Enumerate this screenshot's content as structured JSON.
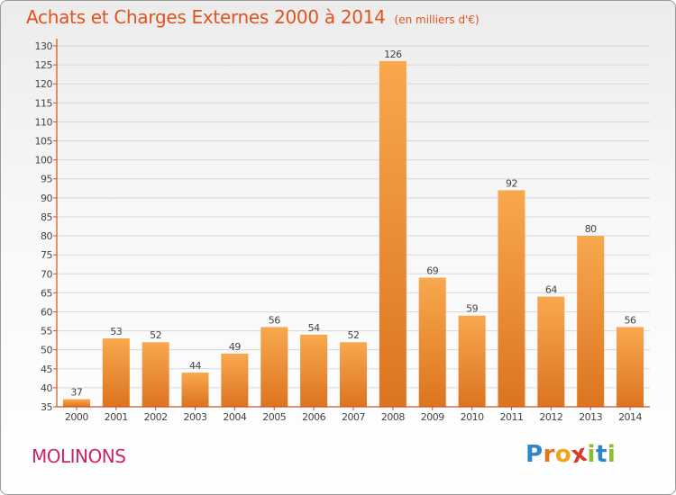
{
  "header": {
    "title": "Achats et Charges Externes 2000 à 2014",
    "unit": "(en milliers d'€)"
  },
  "footer": {
    "place": "MOLINONS",
    "brand": "Proxiti",
    "brand_letters": [
      "P",
      "r",
      "o",
      "x",
      "i",
      "t",
      "i"
    ],
    "brand_colors": [
      "#2e86c8",
      "#e8731c",
      "#f2a316",
      "#d63a2a",
      "#8bbd2e",
      "#2e86c8",
      "#8bbd2e"
    ]
  },
  "colors": {
    "bar_light": "#f8a84e",
    "bar_dark": "#dc7420",
    "axis": "#d4511a",
    "grid": "#d8d8d8",
    "text": "#444444"
  },
  "chart_data": {
    "type": "bar",
    "title": "Achats et Charges Externes 2000 à 2014",
    "subtitle": "(en milliers d'€)",
    "categories": [
      "2000",
      "2001",
      "2002",
      "2003",
      "2004",
      "2005",
      "2006",
      "2007",
      "2008",
      "2009",
      "2010",
      "2011",
      "2012",
      "2013",
      "2014"
    ],
    "values": [
      37,
      53,
      52,
      44,
      49,
      56,
      54,
      52,
      126,
      69,
      59,
      92,
      64,
      80,
      56
    ],
    "ylim": [
      35,
      130
    ],
    "ytick_step": 5,
    "grid": true,
    "xlabel": "",
    "ylabel": ""
  }
}
